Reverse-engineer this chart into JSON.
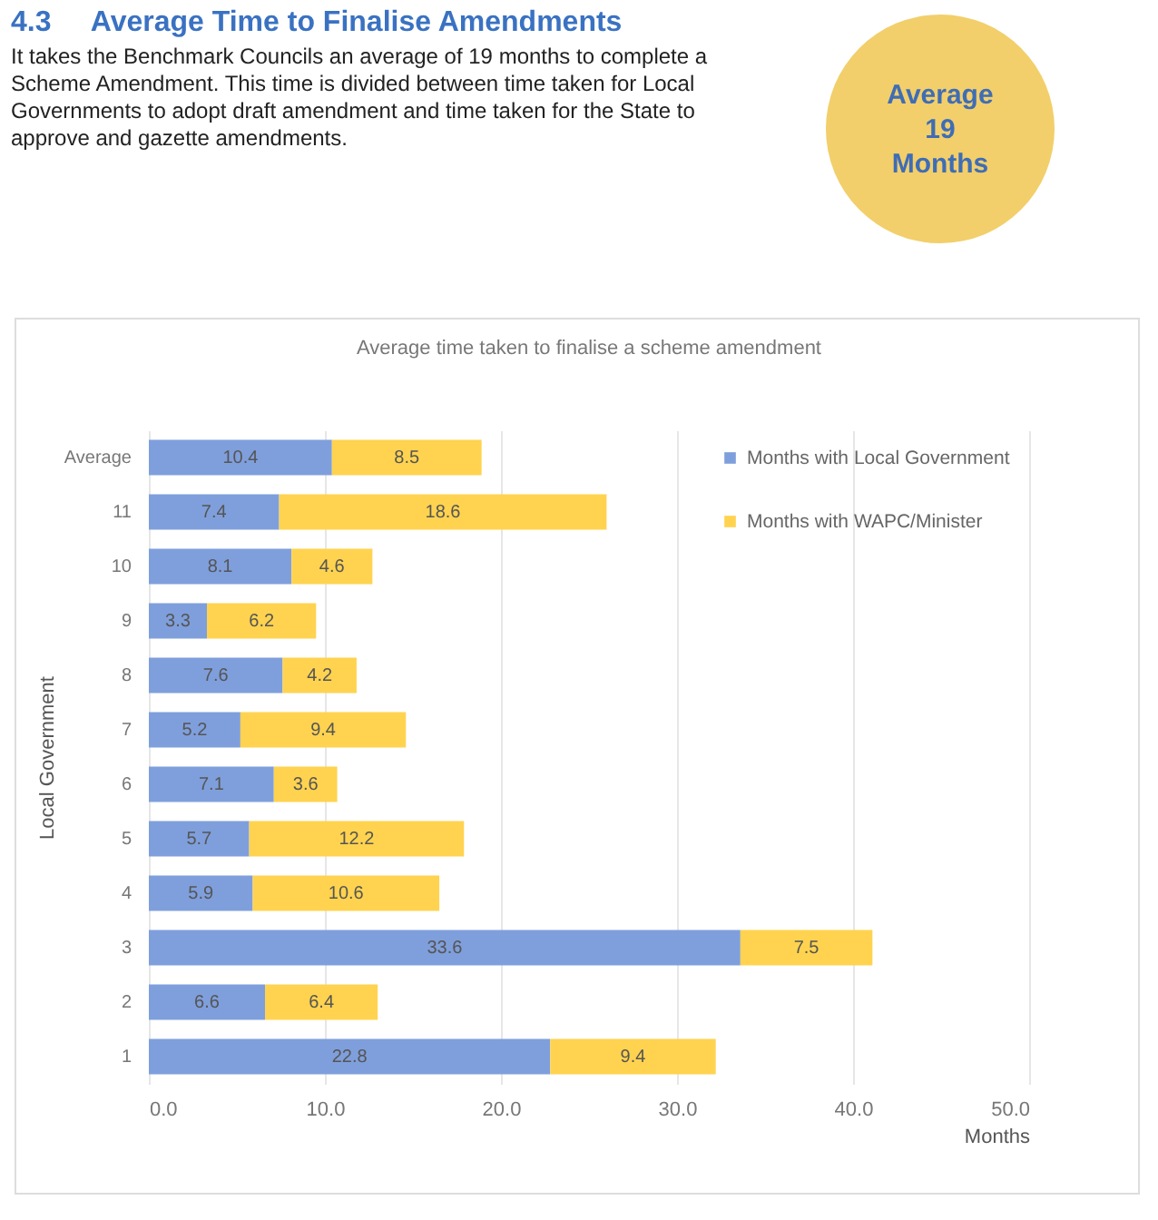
{
  "chart_data": {
    "type": "bar",
    "orientation": "horizontal",
    "stacked": true,
    "title": "Average time taken to finalise a scheme amendment",
    "annotations": [
      "4.3     Average Time to Finalise Amendments",
      "It takes the Benchmark Councils an average of 19 months to complete a Scheme Amendment.  This time is divided between time taken for Local Governments to adopt draft amendment and time taken for the State to approve and gazette amendments.",
      "Average 19 Months"
    ],
    "xlabel": "Months",
    "ylabel": "Local Government",
    "categories": [
      "Average",
      "11",
      "10",
      "9",
      "8",
      "7",
      "6",
      "5",
      "4",
      "3",
      "2",
      "1"
    ],
    "series": [
      {
        "name": "Months with Local Government",
        "color": "#7f9fdc",
        "values": [
          10.4,
          7.4,
          8.1,
          3.3,
          7.6,
          5.2,
          7.1,
          5.7,
          5.9,
          33.6,
          6.6,
          22.8
        ]
      },
      {
        "name": "Months with WAPC/Minister",
        "color": "#ffd34f",
        "values": [
          8.5,
          18.6,
          4.6,
          6.2,
          4.2,
          9.4,
          3.6,
          12.2,
          10.6,
          7.5,
          6.4,
          9.4
        ]
      }
    ],
    "xlim": [
      0,
      50
    ],
    "xticks": [
      {
        "value": 0,
        "label": "0.0"
      },
      {
        "value": 10,
        "label": "10.0"
      },
      {
        "value": 20,
        "label": "20.0"
      },
      {
        "value": 30,
        "label": "30.0"
      },
      {
        "value": 40,
        "label": "40.0"
      },
      {
        "value": 50,
        "label": "50.0"
      }
    ],
    "grid": "x",
    "legend": "top right",
    "data_labels": true
  }
}
